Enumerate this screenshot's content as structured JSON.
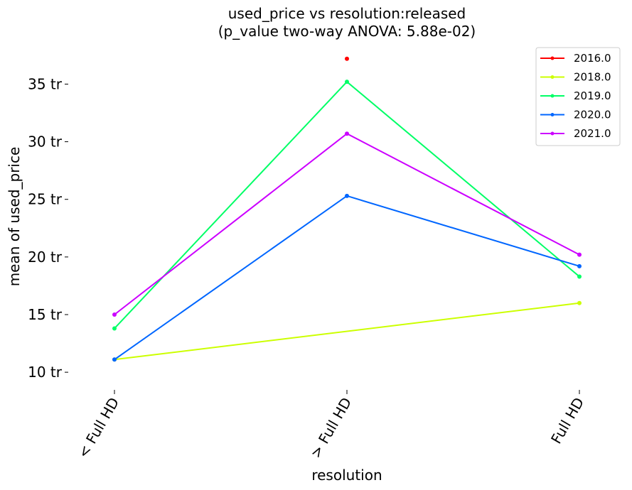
{
  "chart_data": {
    "type": "line",
    "title": "used_price vs resolution:released",
    "subtitle": "(p_value two-way ANOVA: 5.88e-02)",
    "xlabel": "resolution",
    "ylabel": "mean of used_price",
    "categories": [
      "< Full HD",
      "> Full HD",
      "Full HD"
    ],
    "y_ticks": [
      10,
      15,
      20,
      25,
      30,
      35
    ],
    "y_tick_labels": [
      "10 tr",
      "15 tr",
      "20 tr",
      "25 tr",
      "30 tr",
      "35 tr"
    ],
    "ylim": [
      8.9,
      38.6
    ],
    "grid": false,
    "legend_position": "top-right",
    "series": [
      {
        "name": "2016.0",
        "color": "#ff0000",
        "values": [
          null,
          37.2,
          null
        ]
      },
      {
        "name": "2018.0",
        "color": "#ccff00",
        "values": [
          11.1,
          null,
          16.0
        ]
      },
      {
        "name": "2019.0",
        "color": "#00ff66",
        "values": [
          13.8,
          35.2,
          18.3
        ]
      },
      {
        "name": "2020.0",
        "color": "#0066ff",
        "values": [
          11.1,
          25.3,
          19.2
        ]
      },
      {
        "name": "2021.0",
        "color": "#cc00ff",
        "values": [
          15.0,
          30.7,
          20.2
        ]
      }
    ]
  }
}
